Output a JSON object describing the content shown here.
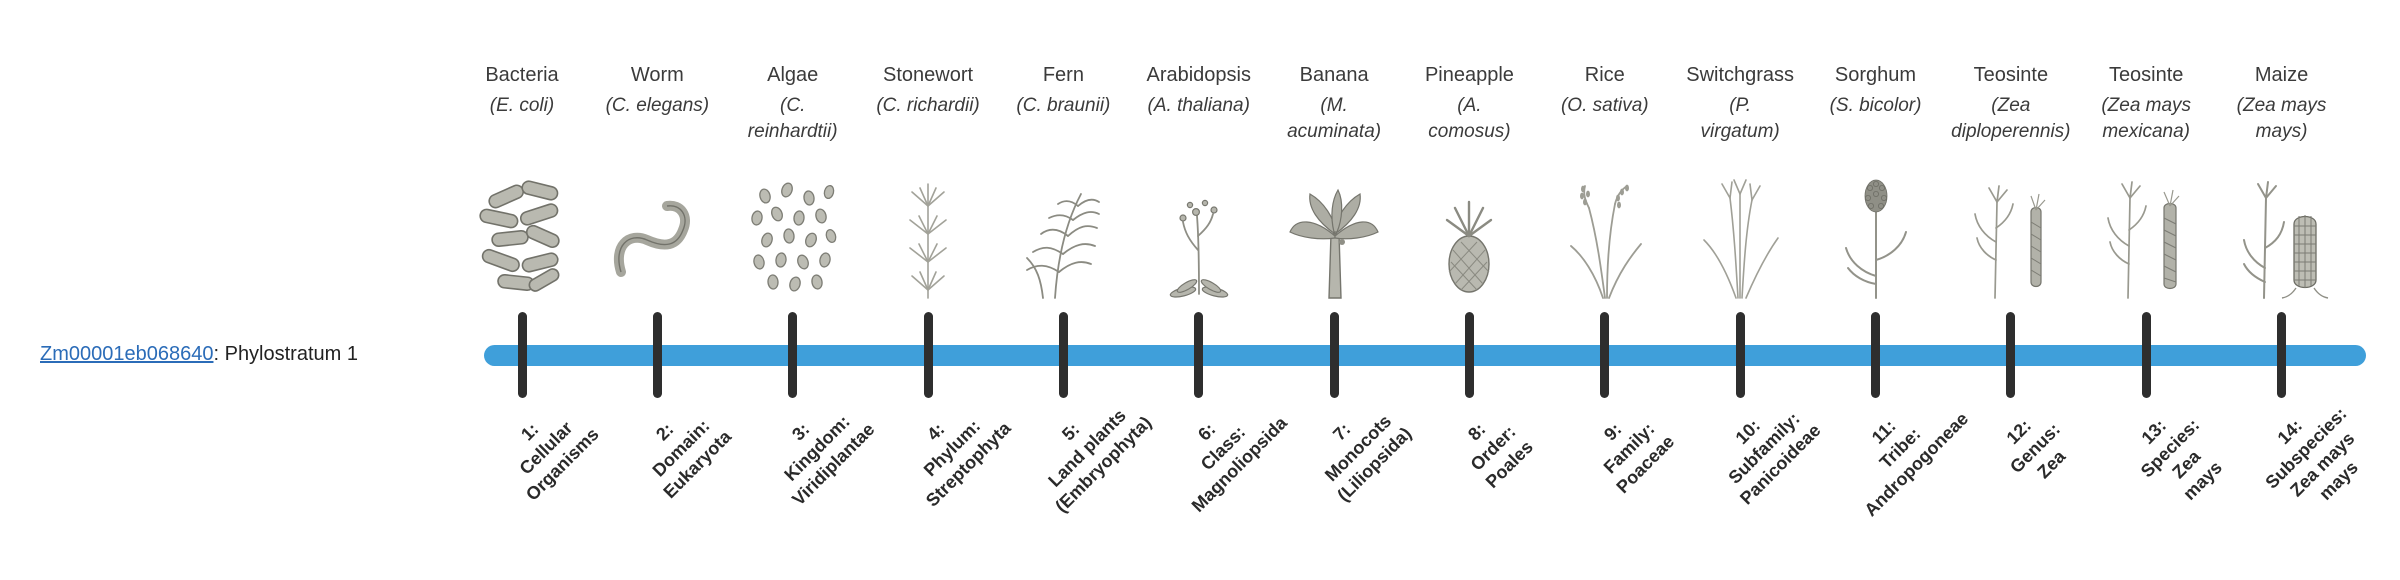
{
  "gene": {
    "id": "Zm00001eb068640",
    "phylostratum_text": ": Phylostratum 1"
  },
  "colors": {
    "timeline_bar": "#3f9fda",
    "tick": "#2e2e2e",
    "link": "#2b6cb8"
  },
  "organisms": [
    {
      "common_name": "Bacteria",
      "scientific_name": "(E. coli)",
      "icon": "bacteria-icon",
      "stratum_label": "1:\nCellular\nOrganisms"
    },
    {
      "common_name": "Worm",
      "scientific_name": "(C. elegans)",
      "icon": "worm-icon",
      "stratum_label": "2:\nDomain:\nEukaryota"
    },
    {
      "common_name": "Algae",
      "scientific_name": "(C.\nreinhardtii)",
      "icon": "algae-icon",
      "stratum_label": "3:\nKingdom:\nViridiplantae"
    },
    {
      "common_name": "Stonewort",
      "scientific_name": "(C. richardii)",
      "icon": "stonewort-icon",
      "stratum_label": "4:\nPhylum:\nStreptophyta"
    },
    {
      "common_name": "Fern",
      "scientific_name": "(C. braunii)",
      "icon": "fern-icon",
      "stratum_label": "5:\nLand plants\n(Embryophyta)"
    },
    {
      "common_name": "Arabidopsis",
      "scientific_name": "(A. thaliana)",
      "icon": "arabidopsis-icon",
      "stratum_label": "6:\nClass:\nMagnoliopsida"
    },
    {
      "common_name": "Banana",
      "scientific_name": "(M.\nacuminata)",
      "icon": "banana-icon",
      "stratum_label": "7:\nMonocots\n(Liliopsida)"
    },
    {
      "common_name": "Pineapple",
      "scientific_name": "(A.\ncomosus)",
      "icon": "pineapple-icon",
      "stratum_label": "8:\nOrder:\nPoales"
    },
    {
      "common_name": "Rice",
      "scientific_name": "(O. sativa)",
      "icon": "rice-icon",
      "stratum_label": "9:\nFamily:\nPoaceae"
    },
    {
      "common_name": "Switchgrass",
      "scientific_name": "(P.\nvirgatum)",
      "icon": "switchgrass-icon",
      "stratum_label": "10:\nSubfamily:\nPanicoideae"
    },
    {
      "common_name": "Sorghum",
      "scientific_name": "(S. bicolor)",
      "icon": "sorghum-icon",
      "stratum_label": "11:\nTribe:\nAndropogoneae"
    },
    {
      "common_name": "Teosinte",
      "scientific_name": "(Zea\ndiploperennis)",
      "icon": "teosinte-diploperennis-icon",
      "stratum_label": "12:\nGenus:\nZea"
    },
    {
      "common_name": "Teosinte",
      "scientific_name": "(Zea mays\nmexicana)",
      "icon": "teosinte-mexicana-icon",
      "stratum_label": "13:\nSpecies:\nZea\nmays"
    },
    {
      "common_name": "Maize",
      "scientific_name": "(Zea mays\nmays)",
      "icon": "maize-icon",
      "stratum_label": "14:\nSubspecies:\nZea mays\nmays"
    }
  ]
}
